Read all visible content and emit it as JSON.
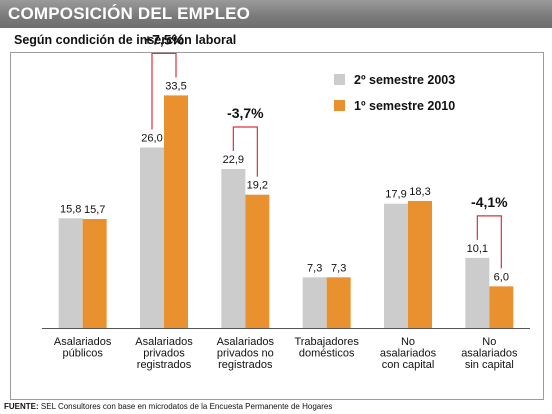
{
  "header": {
    "title": "COMPOSICIÓN DEL EMPLEO"
  },
  "subtitle": "Según condición de inserción laboral",
  "footer": {
    "label": "FUENTE:",
    "text": "SEL Consultores con base en microdatos de la Encuesta Permanente de Hogares"
  },
  "colors": {
    "series_2003": "#cccccc",
    "series_2010": "#e8912e",
    "bracket": "#e0303a"
  },
  "chart_data": {
    "type": "bar",
    "categories": [
      [
        "Asalariados",
        "públicos"
      ],
      [
        "Asalariados",
        "privados",
        "registrados"
      ],
      [
        "Asalariados",
        "privados no",
        "registrados"
      ],
      [
        "Trabajadores",
        "domésticos"
      ],
      [
        "No",
        "asalariados",
        "con capital"
      ],
      [
        "No",
        "asalariados",
        "sin capital"
      ]
    ],
    "series": [
      {
        "name": "2º semestre 2003",
        "values": [
          15.8,
          26.0,
          22.9,
          7.3,
          17.9,
          10.1
        ],
        "labels": [
          "15,8",
          "26,0",
          "22,9",
          "7,3",
          "17,9",
          "10,1"
        ]
      },
      {
        "name": "1º semestre 2010",
        "values": [
          15.7,
          33.5,
          19.2,
          7.3,
          18.3,
          6.0
        ],
        "labels": [
          "15,7",
          "33,5",
          "19,2",
          "7,3",
          "18,3",
          "6,0"
        ]
      }
    ],
    "annotations": [
      {
        "category_index": 1,
        "text": "+7,5%"
      },
      {
        "category_index": 2,
        "text": "-3,7%"
      },
      {
        "category_index": 5,
        "text": "-4,1%"
      }
    ],
    "legend": "top-right",
    "ylim": [
      0,
      35
    ],
    "grid": false
  }
}
